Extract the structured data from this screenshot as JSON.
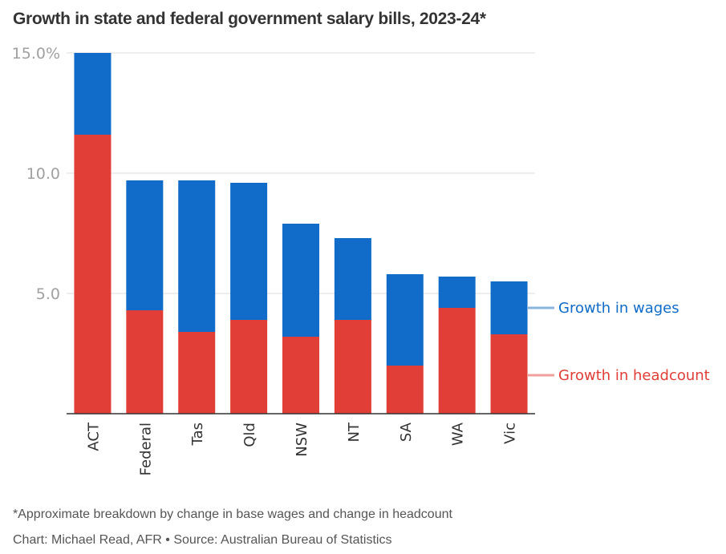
{
  "chart_data": {
    "type": "bar",
    "stacked": true,
    "title": "Growth in state and federal government salary bills, 2023-24*",
    "xlabel": "",
    "ylabel": "",
    "ylim": [
      0,
      15
    ],
    "yticks": [
      5,
      10,
      15
    ],
    "ytick_labels": [
      "5.0",
      "10.0",
      "15.0%"
    ],
    "grid": true,
    "legend_placement": "right (direct labels)",
    "categories": [
      "ACT",
      "Federal",
      "Tas",
      "Qld",
      "NSW",
      "NT",
      "SA",
      "WA",
      "Vic"
    ],
    "series": [
      {
        "name": "Growth in headcount",
        "color": "#e03e36",
        "values": [
          11.6,
          4.3,
          3.4,
          3.9,
          3.2,
          3.9,
          2.0,
          4.4,
          3.3
        ]
      },
      {
        "name": "Growth in wages",
        "color": "#106cc8",
        "values": [
          3.4,
          5.4,
          6.3,
          5.7,
          4.7,
          3.4,
          3.8,
          1.3,
          2.2
        ]
      }
    ],
    "legend": [
      {
        "label": "Growth in wages",
        "color": "#106cc8",
        "line_color": "#8ab4e0",
        "anchor_value": 4.4
      },
      {
        "label": "Growth in headcount",
        "color": "#e03e36",
        "line_color": "#f0a09b",
        "anchor_value": 1.6
      }
    ]
  },
  "footnotes": {
    "note": "*Approximate breakdown by change in base wages and change in headcount",
    "credit": "Chart: Michael Read, AFR • Source: Australian Bureau of Statistics"
  }
}
